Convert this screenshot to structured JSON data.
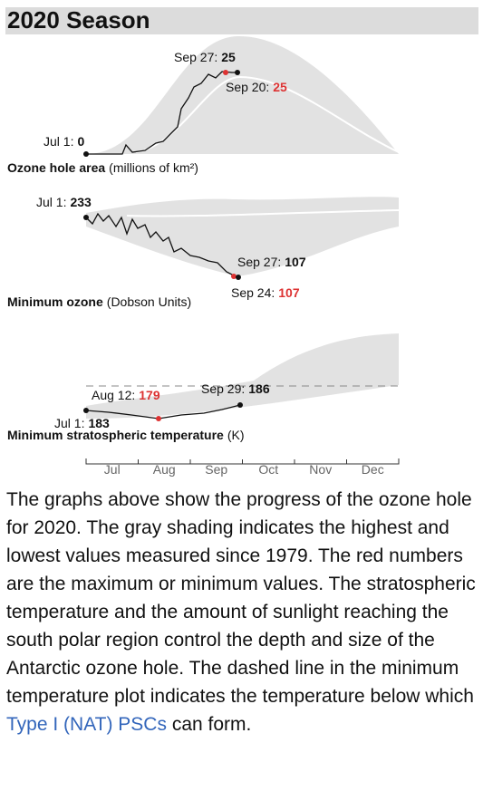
{
  "header": {
    "title": "2020 Season"
  },
  "panels": [
    {
      "label": "Ozone hole area",
      "unit": "(millions of km²)",
      "annotations": [
        {
          "label": "Sep 27:",
          "value": 25,
          "color": "#111111"
        },
        {
          "label": "Sep 20:",
          "value": 25,
          "color": "#dd3333"
        },
        {
          "label": "Jul 1:",
          "value": 0,
          "color": "#111111"
        }
      ]
    },
    {
      "label": "Minimum ozone",
      "unit": "(Dobson Units)",
      "annotations": [
        {
          "label": "Jul 1:",
          "value": 233,
          "color": "#111111"
        },
        {
          "label": "Sep 27:",
          "value": 107,
          "color": "#111111"
        },
        {
          "label": "Sep 24:",
          "value": 107,
          "color": "#dd3333"
        }
      ]
    },
    {
      "label": "Minimum stratospheric temperature",
      "unit": "(K)",
      "annotations": [
        {
          "label": "Aug 12:",
          "value": 179,
          "color": "#dd3333"
        },
        {
          "label": "Sep 29:",
          "value": 186,
          "color": "#111111"
        },
        {
          "label": "Jul 1:",
          "value": 183,
          "color": "#111111"
        }
      ]
    }
  ],
  "months": [
    "Jul",
    "Aug",
    "Sep",
    "Oct",
    "Nov",
    "Dec"
  ],
  "paragraph": {
    "text": "The graphs above show the progress of the ozone hole for 2020. The gray shading indicates the highest and lowest values measured since 1979. The red numbers are the maximum or minimum values. The stratospheric temperature and the amount of sunlight reaching the south polar region control the depth and size of the Antarctic ozone hole. The dashed line in the minimum temperature plot indicates the temperature below which ",
    "link": "Type I (NAT) PSCs",
    "text_end": " can form."
  }
}
